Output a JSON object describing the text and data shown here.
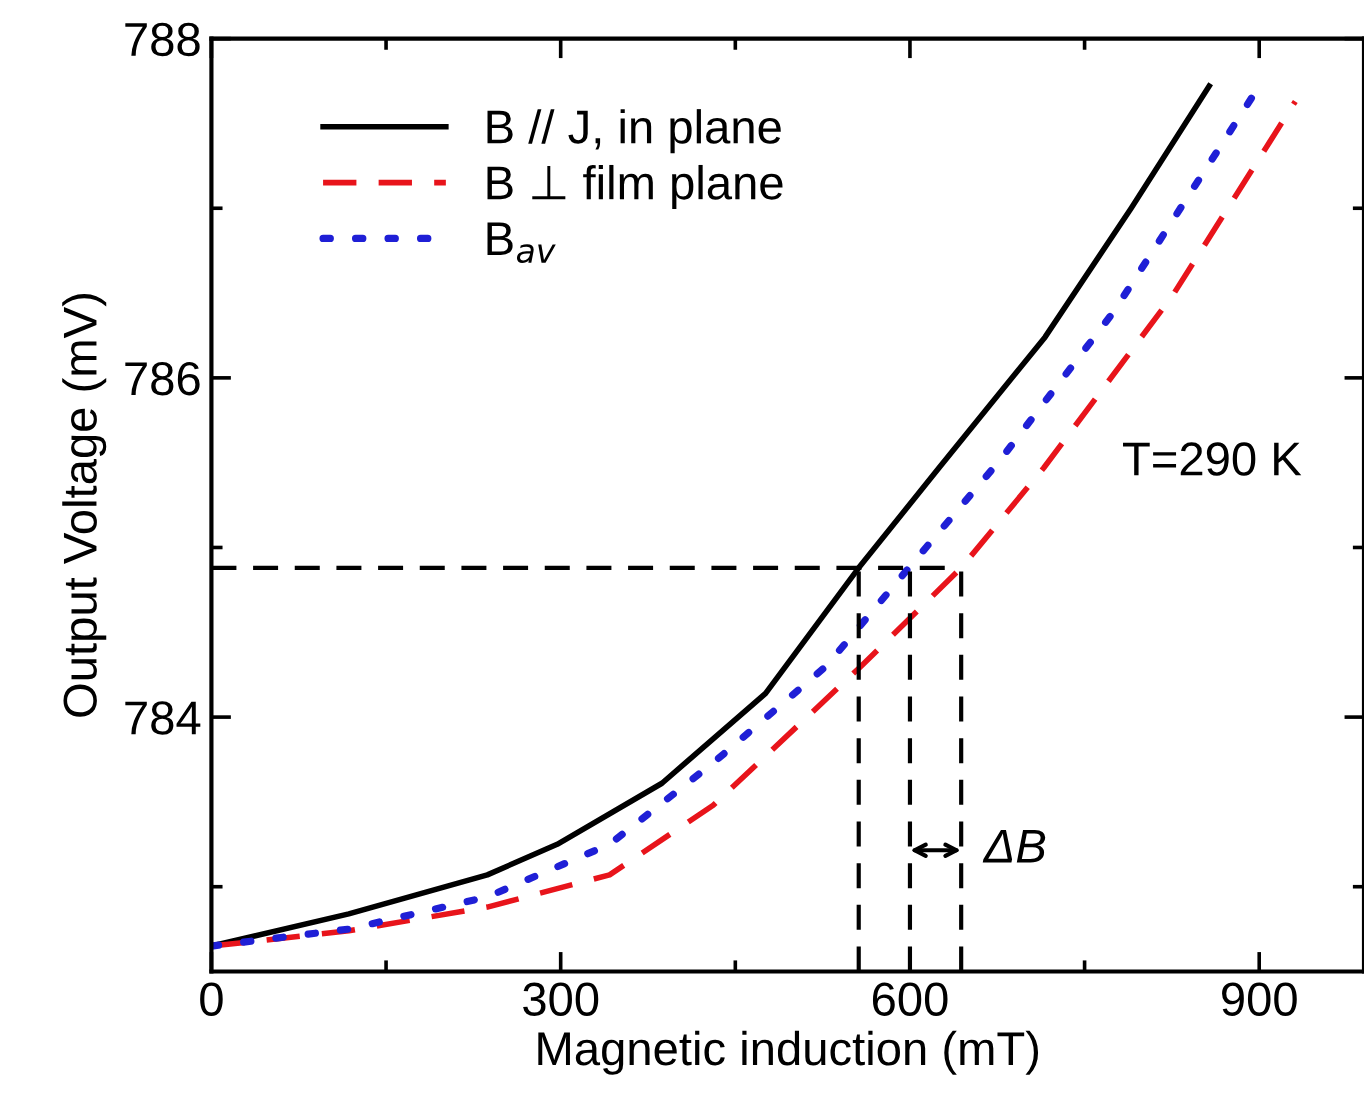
{
  "chart_data": {
    "type": "line",
    "xlabel": "Magnetic induction (mT)",
    "ylabel": "Output Voltage (mV)",
    "xlim": [
      0,
      990
    ],
    "ylim": [
      782.5,
      788
    ],
    "xticks": [
      0,
      {
        "value": 150,
        "label": null
      },
      300,
      {
        "value": 450,
        "label": null
      },
      600,
      {
        "value": 750,
        "label": null
      },
      900
    ],
    "yticks": [
      {
        "value": 783,
        "label": null
      },
      784,
      {
        "value": 785,
        "label": null
      },
      786,
      {
        "value": 787,
        "label": null
      },
      788
    ],
    "legend": "top left",
    "grid": false,
    "series": [
      {
        "name": "B // J, in plane",
        "color": "#000000",
        "line_style": "solid",
        "x": [
          0,
          118,
          237,
          297,
          387,
          476,
          556,
          625,
          716,
          790,
          857
        ],
        "values": [
          782.65,
          782.84,
          783.07,
          783.25,
          783.61,
          784.14,
          784.88,
          785.47,
          786.24,
          787.0,
          787.72
        ]
      },
      {
        "name": "B ⊥ film plane",
        "color": "#e8141b",
        "line_style": "dashed",
        "x": [
          0,
          118,
          237,
          342,
          431,
          558,
          644,
          715,
          826,
          931
        ],
        "values": [
          782.65,
          782.74,
          782.88,
          783.07,
          783.48,
          784.3,
          784.88,
          785.47,
          786.49,
          787.63
        ]
      },
      {
        "name": "B$_{av}$",
        "color": "#1f1fd6",
        "line_style": "dotted",
        "x": [
          0,
          118,
          237,
          342,
          431,
          528,
          599,
          678,
          775,
          900
        ],
        "values": [
          782.65,
          782.75,
          782.94,
          783.25,
          783.73,
          784.3,
          784.88,
          785.52,
          786.39,
          787.72
        ]
      }
    ],
    "ref_lines": [
      {
        "axis": "y",
        "value": 784.88,
        "line_style": "dashed",
        "color": "#000000"
      },
      {
        "axis": "x",
        "value": 556,
        "line_style": "dashed",
        "color": "#000000"
      },
      {
        "axis": "x",
        "value": 600,
        "line_style": "dashed",
        "color": "#000000"
      },
      {
        "axis": "x",
        "value": 644,
        "line_style": "dashed",
        "color": "#000000"
      }
    ],
    "annotations": [
      "T=290 K",
      "ΔB"
    ]
  }
}
